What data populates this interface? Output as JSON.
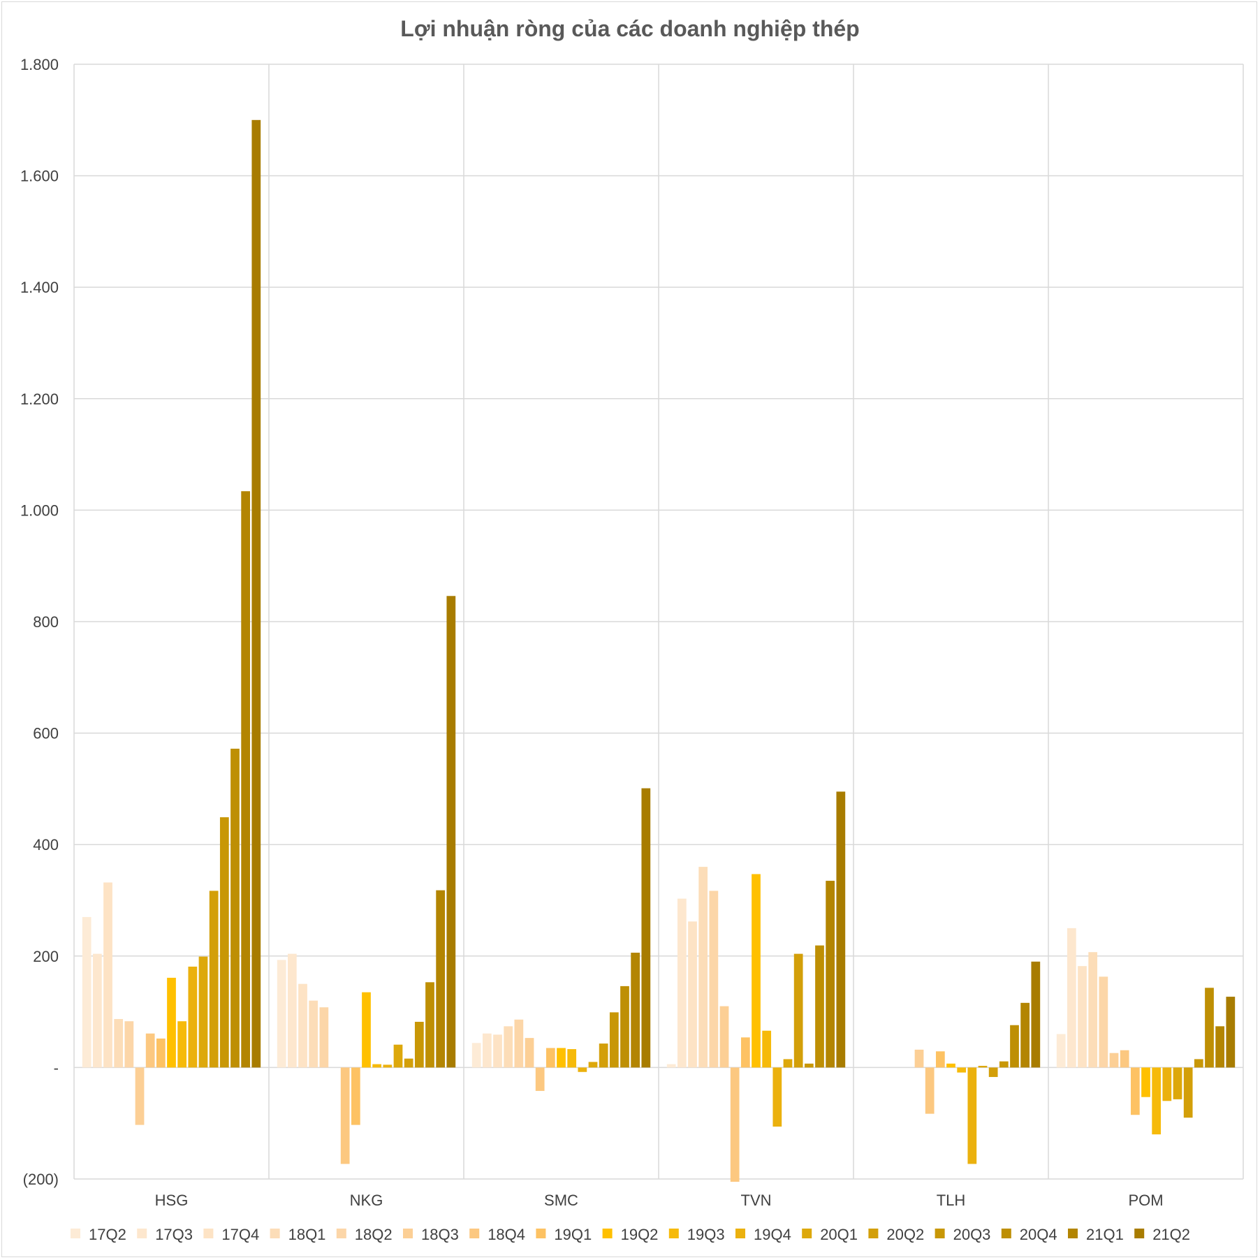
{
  "chart_data": {
    "type": "bar",
    "title": "Lợi nhuận ròng của các doanh nghiệp thép",
    "xlabel": "",
    "ylabel": "",
    "ylim": [
      -200,
      1800
    ],
    "y_ticks": [
      {
        "value": 1800,
        "label": "1.800"
      },
      {
        "value": 1600,
        "label": "1.600"
      },
      {
        "value": 1400,
        "label": "1.400"
      },
      {
        "value": 1200,
        "label": "1.200"
      },
      {
        "value": 1000,
        "label": "1.000"
      },
      {
        "value": 800,
        "label": "800"
      },
      {
        "value": 600,
        "label": "600"
      },
      {
        "value": 400,
        "label": "400"
      },
      {
        "value": 200,
        "label": "200"
      },
      {
        "value": 0,
        "label": "-"
      },
      {
        "value": -200,
        "label": "(200)"
      }
    ],
    "grid": true,
    "legend_position": "bottom",
    "categories": [
      "HSG",
      "NKG",
      "SMC",
      "TVN",
      "TLH",
      "POM"
    ],
    "series": [
      {
        "name": "17Q2",
        "color": "#FDEBD6",
        "values": [
          270,
          193,
          44,
          6,
          0,
          60
        ]
      },
      {
        "name": "17Q3",
        "color": "#FDE7CE",
        "values": [
          204,
          204,
          61,
          303,
          0,
          250
        ]
      },
      {
        "name": "17Q4",
        "color": "#FDE3C5",
        "values": [
          332,
          150,
          59,
          262,
          0,
          182
        ]
      },
      {
        "name": "18Q1",
        "color": "#FCDDB8",
        "values": [
          87,
          120,
          74,
          360,
          0,
          207
        ]
      },
      {
        "name": "18Q2",
        "color": "#FCD6A8",
        "values": [
          83,
          108,
          86,
          317,
          0,
          163
        ]
      },
      {
        "name": "18Q3",
        "color": "#FCCF95",
        "values": [
          -103,
          0,
          53,
          110,
          32,
          26
        ]
      },
      {
        "name": "18Q4",
        "color": "#FCC880",
        "values": [
          61,
          -173,
          -42,
          -205,
          -83,
          31
        ]
      },
      {
        "name": "19Q1",
        "color": "#FDC263",
        "values": [
          52,
          -103,
          35,
          54,
          29,
          -85
        ]
      },
      {
        "name": "19Q2",
        "color": "#FFC000",
        "values": [
          161,
          135,
          35,
          347,
          7,
          -53
        ]
      },
      {
        "name": "19Q3",
        "color": "#F6BA0A",
        "values": [
          83,
          6,
          33,
          66,
          -9,
          -120
        ]
      },
      {
        "name": "19Q4",
        "color": "#EBB10E",
        "values": [
          181,
          5,
          -8,
          -106,
          -173,
          -60
        ]
      },
      {
        "name": "20Q1",
        "color": "#DDA80B",
        "values": [
          199,
          41,
          10,
          15,
          3,
          -57
        ]
      },
      {
        "name": "20Q2",
        "color": "#D39F09",
        "values": [
          317,
          16,
          43,
          204,
          -17,
          -90
        ]
      },
      {
        "name": "20Q3",
        "color": "#C89706",
        "values": [
          449,
          82,
          99,
          7,
          11,
          15
        ]
      },
      {
        "name": "20Q4",
        "color": "#BE8F04",
        "values": [
          572,
          153,
          146,
          219,
          76,
          143
        ]
      },
      {
        "name": "21Q1",
        "color": "#B38502",
        "values": [
          1034,
          318,
          206,
          335,
          116,
          74
        ]
      },
      {
        "name": "21Q2",
        "color": "#A87C00",
        "values": [
          1700,
          846,
          501,
          495,
          190,
          127
        ]
      }
    ]
  }
}
